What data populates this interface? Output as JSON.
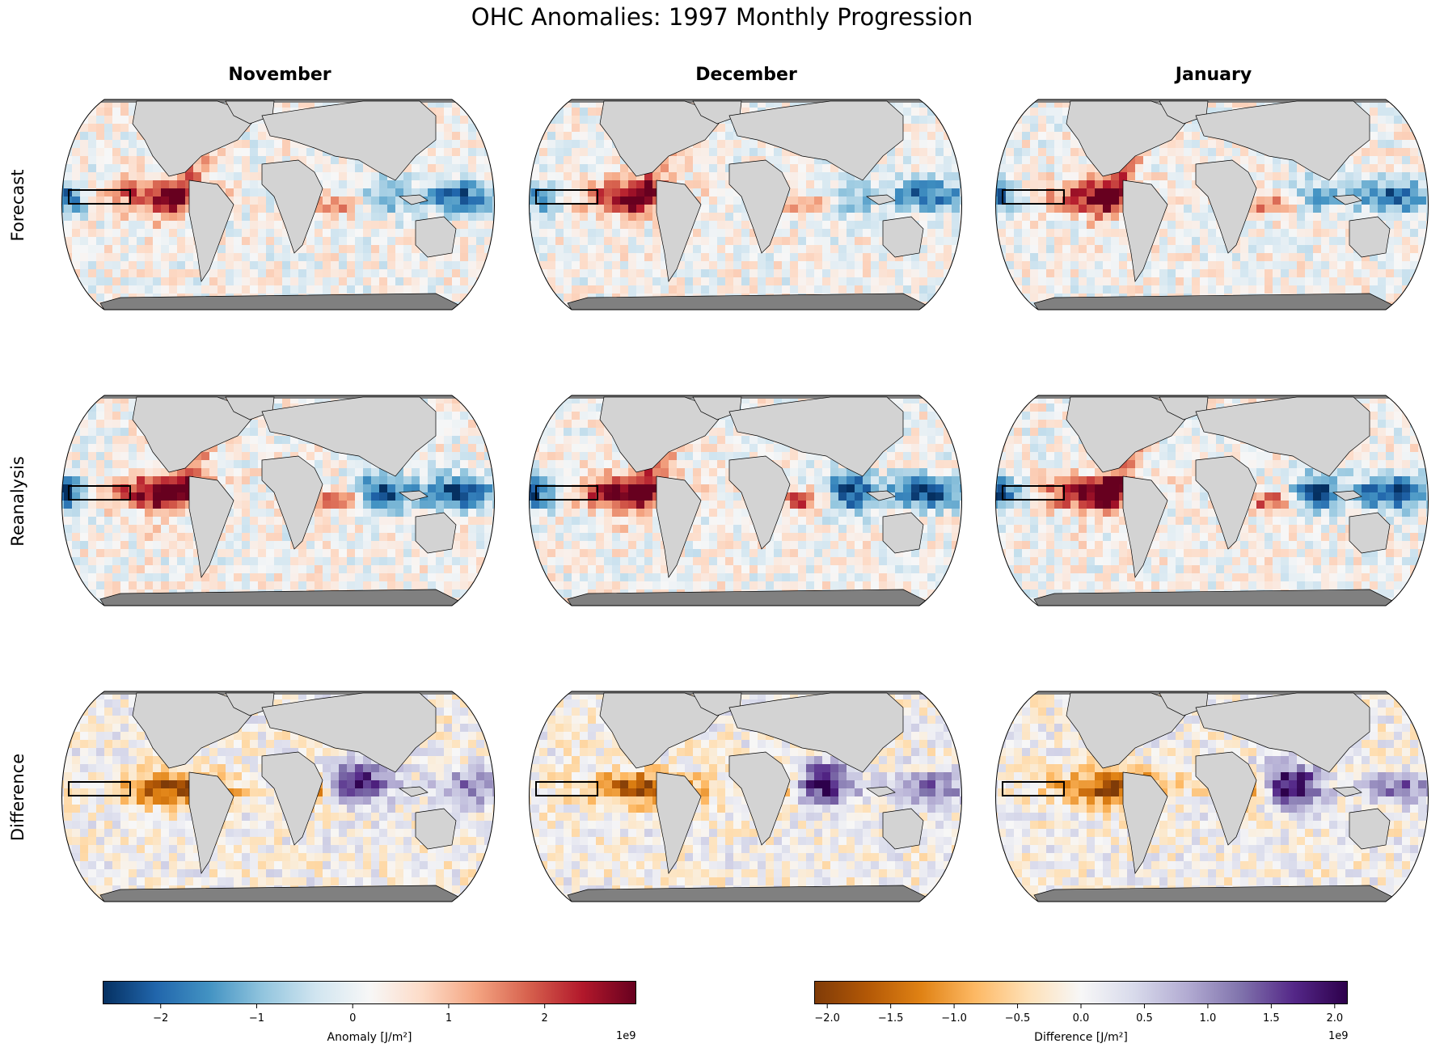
{
  "title": "OHC Anomalies: 1997 Monthly Progression",
  "columns": [
    "November",
    "December",
    "January"
  ],
  "rows": [
    "Forecast",
    "Reanalysis",
    "Difference"
  ],
  "colorbars": {
    "anomaly": {
      "label": "Anomaly [J/m²]",
      "exponent": "1e9",
      "ticks": [
        "−2",
        "−1",
        "0",
        "1",
        "2"
      ],
      "tick_values": [
        -2,
        -1,
        0,
        1,
        2
      ],
      "range": [
        -2.6,
        2.95
      ],
      "colormap": "RdBu_r",
      "colors": [
        "#053061",
        "#2166ac",
        "#4393c3",
        "#92c5de",
        "#d1e5f0",
        "#f7f7f7",
        "#fddbc7",
        "#f4a582",
        "#d6604d",
        "#b2182b",
        "#67001f"
      ]
    },
    "difference": {
      "label": "Difference [J/m²]",
      "exponent": "1e9",
      "ticks": [
        "−2.0",
        "−1.5",
        "−1.0",
        "−0.5",
        "0.0",
        "0.5",
        "1.0",
        "1.5",
        "2.0"
      ],
      "tick_values": [
        -2.0,
        -1.5,
        -1.0,
        -0.5,
        0.0,
        0.5,
        1.0,
        1.5,
        2.0
      ],
      "range": [
        -2.1,
        2.1
      ],
      "colormap": "PuOr",
      "colors": [
        "#7f3b08",
        "#b35806",
        "#e08214",
        "#fdb863",
        "#fee0b6",
        "#f7f7f7",
        "#d8daeb",
        "#b2abd2",
        "#8073ac",
        "#542788",
        "#2d004b"
      ]
    }
  },
  "map_style": {
    "land_color": "#d3d3d3",
    "ice_color": "#808080",
    "border_color": "#000000",
    "box_color": "#000000",
    "projection": "Robinson",
    "highlight_region": "Niño 3.4 box"
  }
}
